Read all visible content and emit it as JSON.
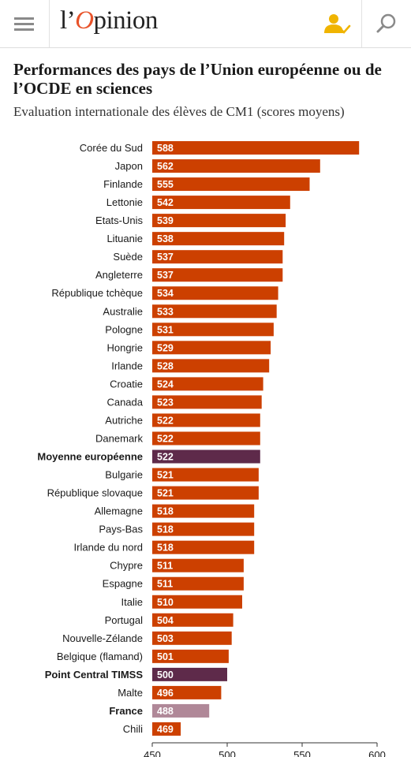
{
  "header": {
    "logo_prefix": "l’",
    "logo_main": "Opinion",
    "icons": {
      "menu": "hamburger-menu-icon",
      "user": "user-check-icon",
      "search": "search-icon"
    },
    "accent": "#e8532a",
    "user_icon_color": "#f0b400"
  },
  "colors": {
    "country": "#cc4000",
    "average": "#5e2a4a",
    "france": "#b08898"
  },
  "chart_data": {
    "type": "bar",
    "orientation": "horizontal",
    "title": "Performances des pays de l’Union européenne ou de l’OCDE en sciences",
    "subtitle": "Evaluation internationale des élèves de CM1 (scores moyens)",
    "xlim": [
      450,
      600
    ],
    "xticks": [
      450,
      500,
      550,
      600
    ],
    "grid": false,
    "bars": [
      {
        "label": "Corée du Sud",
        "value": 588,
        "kind": "country"
      },
      {
        "label": "Japon",
        "value": 562,
        "kind": "country"
      },
      {
        "label": "Finlande",
        "value": 555,
        "kind": "country"
      },
      {
        "label": "Lettonie",
        "value": 542,
        "kind": "country"
      },
      {
        "label": "Etats-Unis",
        "value": 539,
        "kind": "country"
      },
      {
        "label": "Lituanie",
        "value": 538,
        "kind": "country"
      },
      {
        "label": "Suède",
        "value": 537,
        "kind": "country"
      },
      {
        "label": "Angleterre",
        "value": 537,
        "kind": "country"
      },
      {
        "label": "République tchèque",
        "value": 534,
        "kind": "country"
      },
      {
        "label": "Australie",
        "value": 533,
        "kind": "country"
      },
      {
        "label": "Pologne",
        "value": 531,
        "kind": "country"
      },
      {
        "label": "Hongrie",
        "value": 529,
        "kind": "country"
      },
      {
        "label": "Irlande",
        "value": 528,
        "kind": "country"
      },
      {
        "label": "Croatie",
        "value": 524,
        "kind": "country"
      },
      {
        "label": "Canada",
        "value": 523,
        "kind": "country"
      },
      {
        "label": "Autriche",
        "value": 522,
        "kind": "country"
      },
      {
        "label": "Danemark",
        "value": 522,
        "kind": "country"
      },
      {
        "label": "Moyenne européenne",
        "value": 522,
        "kind": "average"
      },
      {
        "label": "Bulgarie",
        "value": 521,
        "kind": "country"
      },
      {
        "label": "République slovaque",
        "value": 521,
        "kind": "country"
      },
      {
        "label": "Allemagne",
        "value": 518,
        "kind": "country"
      },
      {
        "label": "Pays-Bas",
        "value": 518,
        "kind": "country"
      },
      {
        "label": "Irlande du nord",
        "value": 518,
        "kind": "country"
      },
      {
        "label": "Chypre",
        "value": 511,
        "kind": "country"
      },
      {
        "label": "Espagne",
        "value": 511,
        "kind": "country"
      },
      {
        "label": "Italie",
        "value": 510,
        "kind": "country"
      },
      {
        "label": "Portugal",
        "value": 504,
        "kind": "country"
      },
      {
        "label": "Nouvelle-Zélande",
        "value": 503,
        "kind": "country"
      },
      {
        "label": "Belgique (flamand)",
        "value": 501,
        "kind": "country"
      },
      {
        "label": "Point Central TIMSS",
        "value": 500,
        "kind": "average"
      },
      {
        "label": "Malte",
        "value": 496,
        "kind": "country"
      },
      {
        "label": "France",
        "value": 488,
        "kind": "france"
      },
      {
        "label": "Chili",
        "value": 469,
        "kind": "country"
      }
    ]
  }
}
